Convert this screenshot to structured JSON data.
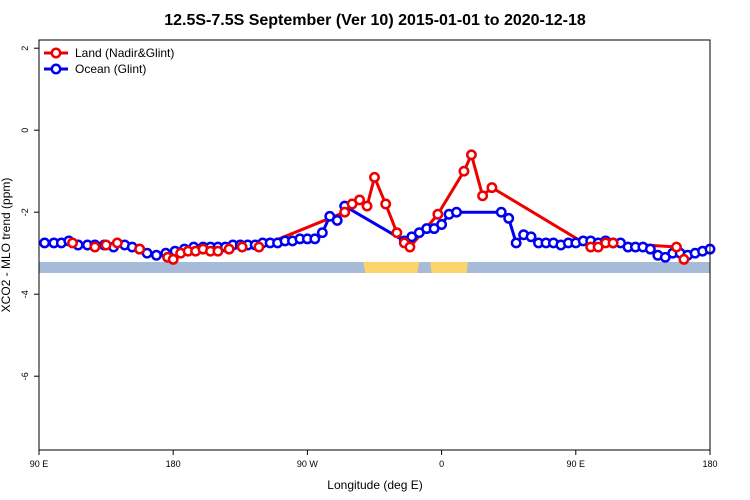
{
  "chart_data": {
    "type": "line",
    "title": "12.5S-7.5S September (Ver 10)   2015-01-01 to 2020-12-18",
    "xlabel": "Longitude (deg E)",
    "ylabel": "XCO2 - MLO trend (ppm)",
    "xlim": [
      90,
      450
    ],
    "ylim": [
      -7.8,
      2.2
    ],
    "x_ticks": [
      {
        "value": 90,
        "label": "90 E"
      },
      {
        "value": 162,
        "label": "180"
      },
      {
        "value": 234,
        "label": "90 W"
      },
      {
        "value": 306,
        "label": "0"
      },
      {
        "value": 378,
        "label": "90 E"
      },
      {
        "value": 450,
        "label": "180"
      }
    ],
    "y_ticks": [
      {
        "value": 2,
        "label": "2"
      },
      {
        "value": 0,
        "label": "0"
      },
      {
        "value": -2,
        "label": "-2"
      },
      {
        "value": -4,
        "label": "-4"
      },
      {
        "value": -6,
        "label": "-6"
      }
    ],
    "grid": false,
    "legend_position": "top-left",
    "colors": {
      "land": "#ee0000",
      "ocean": "#0000ee",
      "sea_band": "#a5bbd8",
      "land_band": "#fdd46a"
    },
    "series": [
      {
        "name": "Land (Nadir&Glint)",
        "color": "#ee0000",
        "x": [
          108,
          120,
          126,
          132,
          144,
          159,
          162,
          166,
          170,
          174,
          178,
          182,
          186,
          192,
          199,
          208,
          254,
          258,
          262,
          266,
          270,
          276,
          282,
          286,
          289,
          304,
          318,
          322,
          328,
          333,
          386,
          390,
          394,
          398,
          432,
          436
        ],
        "y": [
          -2.75,
          -2.85,
          -2.8,
          -2.75,
          -2.9,
          -3.1,
          -3.15,
          -3.0,
          -2.95,
          -2.95,
          -2.9,
          -2.95,
          -2.95,
          -2.9,
          -2.85,
          -2.85,
          -2.0,
          -1.8,
          -1.7,
          -1.85,
          -1.15,
          -1.8,
          -2.5,
          -2.75,
          -2.85,
          -2.05,
          -1.0,
          -0.6,
          -1.6,
          -1.4,
          -2.85,
          -2.85,
          -2.75,
          -2.75,
          -2.85,
          -3.15
        ]
      },
      {
        "name": "Ocean (Glint)",
        "color": "#0000ee",
        "x": [
          93,
          98,
          102,
          106,
          111,
          116,
          120,
          125,
          130,
          136,
          140,
          144,
          148,
          153,
          158,
          163,
          168,
          173,
          178,
          182,
          186,
          190,
          194,
          198,
          202,
          206,
          210,
          214,
          218,
          222,
          226,
          230,
          234,
          238,
          242,
          246,
          250,
          254,
          286,
          290,
          294,
          298,
          302,
          306,
          310,
          314,
          338,
          342,
          346,
          350,
          354,
          358,
          362,
          366,
          370,
          374,
          378,
          382,
          386,
          390,
          394,
          398,
          402,
          406,
          410,
          414,
          418,
          422,
          426,
          430,
          434,
          438,
          442,
          446,
          450
        ],
        "y": [
          -2.75,
          -2.75,
          -2.75,
          -2.7,
          -2.8,
          -2.8,
          -2.8,
          -2.8,
          -2.85,
          -2.8,
          -2.85,
          -2.9,
          -3.0,
          -3.05,
          -3.0,
          -2.95,
          -2.9,
          -2.85,
          -2.85,
          -2.85,
          -2.85,
          -2.85,
          -2.8,
          -2.8,
          -2.8,
          -2.8,
          -2.75,
          -2.75,
          -2.75,
          -2.7,
          -2.7,
          -2.65,
          -2.65,
          -2.65,
          -2.5,
          -2.1,
          -2.2,
          -1.85,
          -2.7,
          -2.6,
          -2.5,
          -2.4,
          -2.4,
          -2.3,
          -2.05,
          -2.0,
          -2.0,
          -2.15,
          -2.75,
          -2.55,
          -2.6,
          -2.75,
          -2.75,
          -2.75,
          -2.8,
          -2.75,
          -2.75,
          -2.7,
          -2.7,
          -2.75,
          -2.7,
          -2.75,
          -2.75,
          -2.85,
          -2.85,
          -2.85,
          -2.9,
          -3.05,
          -3.1,
          -3.0,
          -3.0,
          -3.05,
          -3.0,
          -2.95,
          -2.9
        ]
      }
    ]
  }
}
